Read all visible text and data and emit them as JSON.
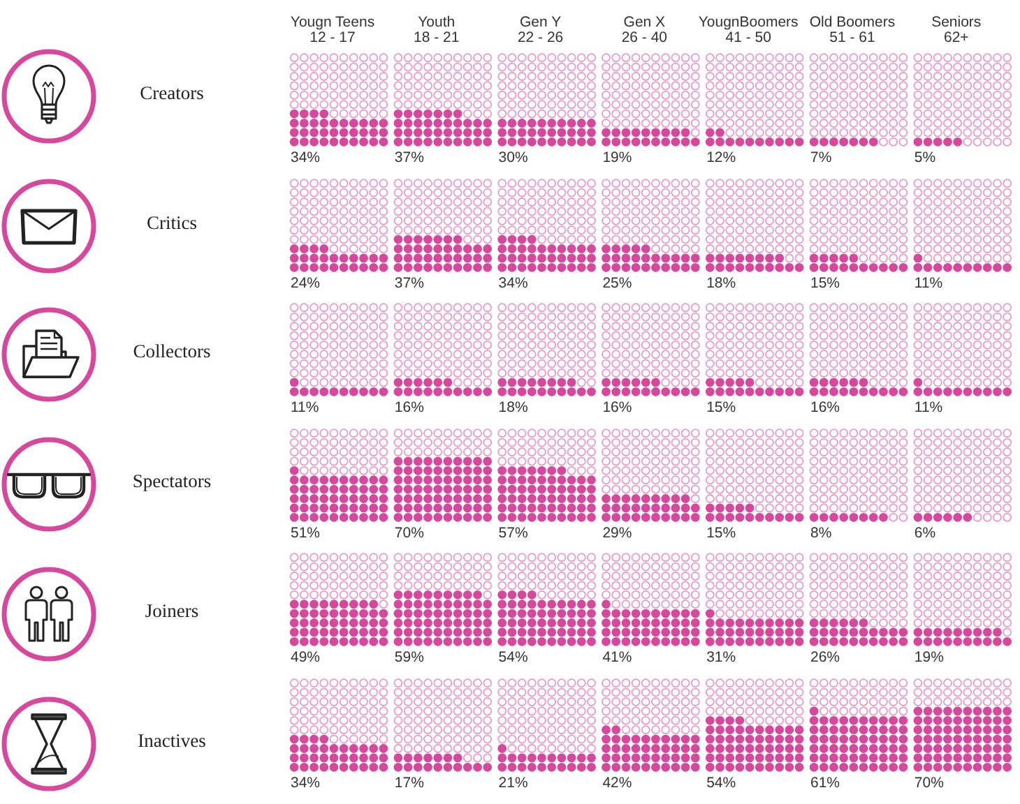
{
  "chart_data": [
    {
      "type": "other",
      "title": "Creators",
      "color": "#d6489b",
      "categories": [
        "Yougn Teens\n12 - 17",
        "Youth\n18 - 21",
        "Gen Y\n22 - 26",
        "Gen X\n26 - 40",
        "YougnBoomers\n41 - 50",
        "Old Boomers\n51 - 61",
        "Seniors\n62+"
      ],
      "values": [
        34,
        37,
        30,
        19,
        12,
        7,
        5
      ],
      "value_labels": [
        "34%",
        "37%",
        "30%",
        "19%",
        "12%",
        "7%",
        "5%"
      ]
    },
    {
      "type": "other",
      "title": "Critics",
      "color": "#d6489b",
      "categories": [
        null,
        null,
        null,
        null,
        null,
        null,
        null
      ],
      "values": [
        24,
        37,
        34,
        25,
        18,
        15,
        11
      ],
      "value_labels": [
        "24%",
        "37%",
        "34%",
        "25%",
        "18%",
        "15%",
        "11%"
      ]
    },
    {
      "type": "other",
      "title": "Collectors",
      "color": "#d6489b",
      "categories": [
        null,
        null,
        null,
        null,
        null,
        null,
        null
      ],
      "values": [
        11,
        16,
        18,
        16,
        15,
        16,
        11
      ],
      "value_labels": [
        "11%",
        "16%",
        "18%",
        "16%",
        "15%",
        "16%",
        "11%"
      ]
    },
    {
      "type": "other",
      "title": "Spectators",
      "color": "#d6489b",
      "categories": [
        null,
        null,
        null,
        null,
        null,
        null,
        null
      ],
      "values": [
        51,
        70,
        57,
        29,
        15,
        8,
        6
      ],
      "value_labels": [
        "51%",
        "70%",
        "57%",
        "29%",
        "15%",
        "8%",
        "6%"
      ]
    },
    {
      "type": "other",
      "title": "Joiners",
      "color": "#d6489b",
      "categories": [
        null,
        null,
        null,
        null,
        null,
        null,
        null
      ],
      "values": [
        49,
        59,
        54,
        41,
        31,
        26,
        19
      ],
      "value_labels": [
        "49%",
        "59%",
        "54%",
        "41%",
        "31%",
        "26%",
        "19%"
      ]
    },
    {
      "type": "other",
      "title": "Inactives",
      "color": "#d6489b",
      "categories": [
        null,
        null,
        null,
        null,
        null,
        null,
        null
      ],
      "values": [
        34,
        17,
        21,
        42,
        54,
        61,
        70
      ],
      "value_labels": [
        "34%",
        "17%",
        "21%",
        "42%",
        "54%",
        "61%",
        "70%"
      ]
    }
  ]
}
